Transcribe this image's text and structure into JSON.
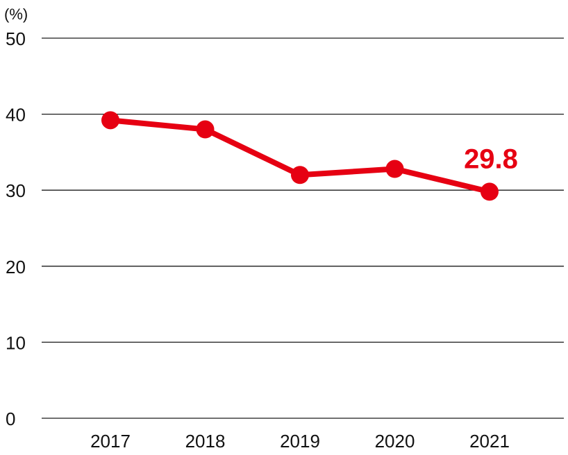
{
  "chart_data": {
    "type": "line",
    "unit_label": "(%)",
    "categories": [
      "2017",
      "2018",
      "2019",
      "2020",
      "2021"
    ],
    "series": [
      {
        "values": [
          39.2,
          38.0,
          32.0,
          32.8,
          29.8
        ],
        "color": "#e60012"
      }
    ],
    "ylim": [
      0,
      50
    ],
    "yticks": [
      0,
      10,
      20,
      30,
      40,
      50
    ],
    "grid": true,
    "annotations": [
      {
        "category": "2021",
        "text": "29.8"
      }
    ]
  }
}
